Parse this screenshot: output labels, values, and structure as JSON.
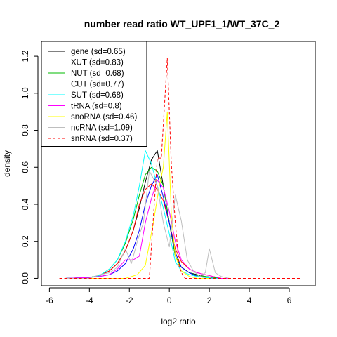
{
  "chart_data": {
    "type": "line",
    "title": "number read ratio WT_UPF1_1/WT_37C_2",
    "xlabel": "log2 ratio",
    "ylabel": "density",
    "xlim": [
      -6.4,
      7.3
    ],
    "ylim": [
      -0.04,
      1.28
    ],
    "xticks": [
      -6,
      -4,
      -2,
      0,
      2,
      4,
      6
    ],
    "yticks": [
      0.0,
      0.2,
      0.4,
      0.6,
      0.8,
      1.0,
      1.2
    ],
    "grid": false,
    "legend_position": "top-left",
    "series": [
      {
        "name": "gene (sd=0.65)",
        "color": "#000000",
        "dash": "solid",
        "x": [
          -5.2,
          -4.0,
          -3.5,
          -3.0,
          -2.6,
          -2.2,
          -1.8,
          -1.5,
          -1.2,
          -0.9,
          -0.6,
          -0.3,
          0.0,
          0.3,
          0.6,
          1.0,
          1.4,
          1.8,
          2.2,
          2.6,
          3.0
        ],
        "y": [
          0,
          0.005,
          0.015,
          0.04,
          0.08,
          0.15,
          0.26,
          0.38,
          0.52,
          0.64,
          0.69,
          0.5,
          0.3,
          0.12,
          0.06,
          0.03,
          0.02,
          0.01,
          0.005,
          0,
          0
        ]
      },
      {
        "name": "XUT (sd=0.83)",
        "color": "#ff0000",
        "dash": "solid",
        "x": [
          -5.2,
          -4.0,
          -3.5,
          -3.0,
          -2.6,
          -2.2,
          -1.8,
          -1.5,
          -1.2,
          -0.9,
          -0.6,
          -0.3,
          0.0,
          0.3,
          0.6,
          1.0,
          1.4,
          1.8,
          2.2,
          2.6,
          3.0
        ],
        "y": [
          0,
          0.005,
          0.015,
          0.04,
          0.08,
          0.15,
          0.26,
          0.4,
          0.48,
          0.51,
          0.48,
          0.42,
          0.3,
          0.16,
          0.09,
          0.05,
          0.03,
          0.02,
          0.01,
          0,
          0
        ]
      },
      {
        "name": "NUT (sd=0.68)",
        "color": "#00bb00",
        "dash": "solid",
        "x": [
          -5.2,
          -4.0,
          -3.5,
          -3.0,
          -2.6,
          -2.2,
          -1.8,
          -1.5,
          -1.2,
          -0.9,
          -0.6,
          -0.3,
          0.0,
          0.3,
          0.6,
          1.0,
          1.4,
          1.8,
          2.2,
          2.6,
          3.0
        ],
        "y": [
          0,
          0.005,
          0.015,
          0.05,
          0.1,
          0.19,
          0.32,
          0.45,
          0.56,
          0.6,
          0.58,
          0.5,
          0.3,
          0.12,
          0.06,
          0.03,
          0.015,
          0.01,
          0.005,
          0,
          0
        ]
      },
      {
        "name": "CUT (sd=0.77)",
        "color": "#0000ff",
        "dash": "solid",
        "x": [
          -5.2,
          -4.0,
          -3.5,
          -3.0,
          -2.6,
          -2.2,
          -1.8,
          -1.5,
          -1.2,
          -0.9,
          -0.6,
          -0.3,
          0.0,
          0.3,
          0.6,
          1.0,
          1.4,
          1.8,
          2.2,
          2.6,
          3.0
        ],
        "y": [
          0,
          0.005,
          0.01,
          0.02,
          0.04,
          0.08,
          0.16,
          0.26,
          0.4,
          0.5,
          0.56,
          0.44,
          0.3,
          0.14,
          0.06,
          0.03,
          0.01,
          0.005,
          0,
          0,
          0
        ]
      },
      {
        "name": "SUT (sd=0.68)",
        "color": "#00ffff",
        "dash": "solid",
        "x": [
          -5.2,
          -4.0,
          -3.5,
          -3.0,
          -2.6,
          -2.2,
          -1.8,
          -1.5,
          -1.2,
          -0.9,
          -0.6,
          -0.3,
          0.0,
          0.3,
          0.6,
          1.0,
          1.4,
          1.8,
          2.2,
          2.6,
          3.0
        ],
        "y": [
          0,
          0.005,
          0.015,
          0.05,
          0.1,
          0.2,
          0.34,
          0.5,
          0.69,
          0.62,
          0.5,
          0.38,
          0.24,
          0.09,
          0.04,
          0.02,
          0.01,
          0.005,
          0,
          0,
          0
        ]
      },
      {
        "name": "tRNA (sd=0.8)",
        "color": "#ff00ff",
        "dash": "solid",
        "x": [
          -5.2,
          -4.0,
          -3.5,
          -3.0,
          -2.6,
          -2.2,
          -1.8,
          -1.5,
          -1.2,
          -0.9,
          -0.6,
          -0.3,
          0.0,
          0.3,
          0.6,
          1.0,
          1.4,
          1.8,
          2.2,
          2.6,
          3.0
        ],
        "y": [
          0,
          0.005,
          0.01,
          0.02,
          0.05,
          0.1,
          0.1,
          0.12,
          0.3,
          0.43,
          0.53,
          0.49,
          0.36,
          0.2,
          0.1,
          0.05,
          0.03,
          0.02,
          0.01,
          0,
          0
        ]
      },
      {
        "name": "snoRNA (sd=0.46)",
        "color": "#ffff00",
        "dash": "solid",
        "x": [
          -5.2,
          -3.0,
          -2.2,
          -1.6,
          -1.2,
          -0.8,
          -0.5,
          -0.3,
          -0.1,
          0.1,
          0.3,
          0.6,
          1.0,
          1.4,
          2.0
        ],
        "y": [
          0,
          0,
          0,
          0.02,
          0.07,
          0.3,
          0.5,
          0.6,
          0.9,
          0.35,
          0.12,
          0.04,
          0.01,
          0,
          0
        ]
      },
      {
        "name": "ncRNA (sd=1.09)",
        "color": "#bebebe",
        "dash": "solid",
        "x": [
          -5.2,
          -4.0,
          -3.5,
          -3.0,
          -2.6,
          -2.2,
          -1.9,
          -1.6,
          -1.3,
          -1.0,
          -0.6,
          -0.3,
          0.0,
          0.3,
          0.6,
          0.9,
          1.2,
          1.5,
          1.8,
          2.0,
          2.3,
          2.6,
          3.0
        ],
        "y": [
          0,
          0,
          0.02,
          0.03,
          0.06,
          0.16,
          0.08,
          0.2,
          0.3,
          0.58,
          0.5,
          0.3,
          0.17,
          0.45,
          0.31,
          0.1,
          0.04,
          0.01,
          0.03,
          0.16,
          0.03,
          0.01,
          0
        ]
      },
      {
        "name": "snRNA (sd=0.37)",
        "color": "#ff0000",
        "dash": "dashed",
        "x": [
          -5.5,
          -1.8,
          -1.0,
          -0.6,
          -0.4,
          -0.1,
          0.1,
          0.3,
          0.5,
          0.7,
          0.8,
          1.2,
          6.6
        ],
        "y": [
          0,
          0,
          0,
          0.65,
          0.65,
          1.19,
          0.62,
          0.3,
          0.06,
          0.01,
          0,
          0,
          0
        ]
      }
    ]
  }
}
